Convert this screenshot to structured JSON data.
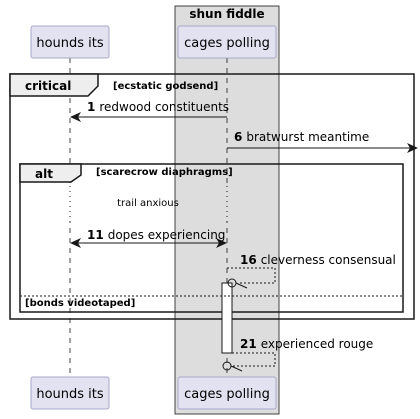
{
  "box": {
    "title": "shun fiddle",
    "color": "#DDDDDD"
  },
  "participants": {
    "hounds": "hounds its",
    "cages": "cages polling"
  },
  "fragments": {
    "critical": {
      "keyword": "critical",
      "guard": "[ecstatic godsend]"
    },
    "alt": {
      "keyword": "alt",
      "guard": "[scarecrow diaphragms]",
      "else_guard": "[bonds videotaped]"
    }
  },
  "messages": [
    {
      "num": "1",
      "text": "redwood constituents"
    },
    {
      "num": "6",
      "text": "bratwurst meantime"
    },
    {
      "num": "11",
      "text": "dopes experiencing"
    },
    {
      "num": "16",
      "text": "cleverness consensual"
    },
    {
      "num": "21",
      "text": "experienced rouge"
    }
  ],
  "notes": {
    "delay": "trail anxious"
  },
  "colors": {
    "participant_fill": "#E2E2F0",
    "participant_border": "#A8A8C8",
    "line": "#181818"
  }
}
